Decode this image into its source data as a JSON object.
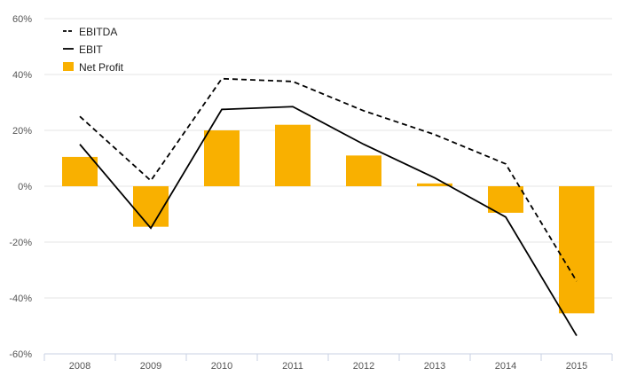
{
  "chart_data": {
    "type": "bar",
    "title": "",
    "xlabel": "",
    "ylabel": "",
    "categories": [
      "2008",
      "2009",
      "2010",
      "2011",
      "2012",
      "2013",
      "2014",
      "2015"
    ],
    "ylim": [
      -60,
      60
    ],
    "yticks": [
      60,
      40,
      20,
      0,
      -20,
      -40,
      -60
    ],
    "ytick_labels": [
      "60%",
      "40%",
      "20%",
      "0%",
      "-20%",
      "-40%",
      "-60%"
    ],
    "grid": true,
    "legend_position": "top-left",
    "series": [
      {
        "name": "EBITDA",
        "type": "line",
        "style": "dashed",
        "color": "#000000",
        "values": [
          25,
          2,
          38.5,
          37.5,
          27,
          18.5,
          8,
          -34
        ]
      },
      {
        "name": "EBIT",
        "type": "line",
        "style": "solid",
        "color": "#000000",
        "values": [
          15,
          -15,
          27.5,
          28.5,
          15,
          3,
          -11,
          -53.5
        ]
      },
      {
        "name": "Net Profit",
        "type": "bar",
        "color": "#f9b000",
        "values": [
          10.5,
          -14.5,
          20,
          22,
          11,
          1,
          -9.5,
          -45.5
        ]
      }
    ]
  }
}
